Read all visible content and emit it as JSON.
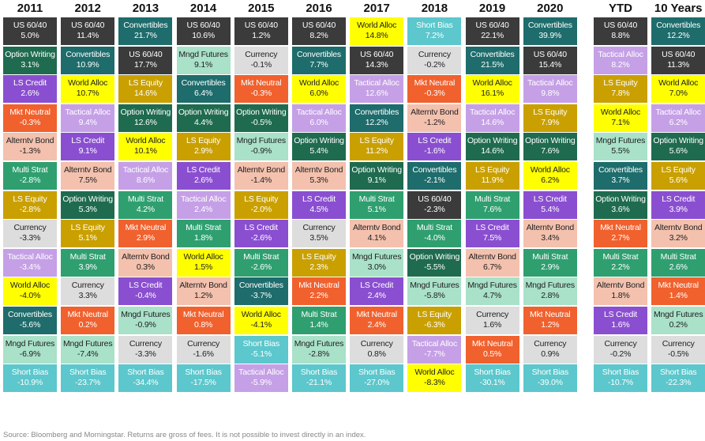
{
  "chart_data": {
    "type": "table",
    "title": "",
    "colors": {
      "US 60/40": {
        "bg": "#3b3b3b",
        "fg": "#ffffff"
      },
      "Option Writing": {
        "bg": "#1f6b4f",
        "fg": "#ffffff"
      },
      "LS Credit": {
        "bg": "#8a4fd0",
        "fg": "#ffffff"
      },
      "Mkt Neutral": {
        "bg": "#f0612e",
        "fg": "#ffffff"
      },
      "Alterntv Bond": {
        "bg": "#f3c1ae",
        "fg": "#222222"
      },
      "Multi Strat": {
        "bg": "#2f9f70",
        "fg": "#ffffff"
      },
      "LS Equity": {
        "bg": "#c9a000",
        "fg": "#ffffff"
      },
      "Currency": {
        "bg": "#dddddd",
        "fg": "#222222"
      },
      "Tactical Alloc": {
        "bg": "#c5a0e6",
        "fg": "#ffffff"
      },
      "World Alloc": {
        "bg": "#ffff00",
        "fg": "#222222"
      },
      "Convertibles": {
        "bg": "#1e6c6c",
        "fg": "#ffffff"
      },
      "Mngd Futures": {
        "bg": "#a9e1c9",
        "fg": "#222222"
      },
      "Short Bias": {
        "bg": "#5cc7cc",
        "fg": "#ffffff"
      }
    },
    "columns": [
      {
        "header": "2011",
        "cells": [
          [
            "US 60/40",
            "5.0%"
          ],
          [
            "Option Writing",
            "3.1%"
          ],
          [
            "LS Credit",
            "2.6%"
          ],
          [
            "Mkt Neutral",
            "-0.3%"
          ],
          [
            "Alterntv Bond",
            "-1.3%"
          ],
          [
            "Multi Strat",
            "-2.8%"
          ],
          [
            "LS Equity",
            "-2.8%"
          ],
          [
            "Currency",
            "-3.3%"
          ],
          [
            "Tactical Alloc",
            "-3.4%"
          ],
          [
            "World Alloc",
            "-4.0%"
          ],
          [
            "Convertibles",
            "-5.6%"
          ],
          [
            "Mngd Futures",
            "-6.9%"
          ],
          [
            "Short Bias",
            "-10.9%"
          ]
        ]
      },
      {
        "header": "2012",
        "cells": [
          [
            "US 60/40",
            "11.4%"
          ],
          [
            "Convertibles",
            "10.9%"
          ],
          [
            "World Alloc",
            "10.7%"
          ],
          [
            "Tactical Alloc",
            "9.4%"
          ],
          [
            "LS Credit",
            "9.1%"
          ],
          [
            "Alterntv Bond",
            "7.5%"
          ],
          [
            "Option Writing",
            "5.3%"
          ],
          [
            "LS Equity",
            "5.1%"
          ],
          [
            "Multi Strat",
            "3.9%"
          ],
          [
            "Currency",
            "3.3%"
          ],
          [
            "Mkt Neutral",
            "0.2%"
          ],
          [
            "Mngd Futures",
            "-7.4%"
          ],
          [
            "Short Bias",
            "-23.7%"
          ]
        ]
      },
      {
        "header": "2013",
        "cells": [
          [
            "Convertibles",
            "21.7%"
          ],
          [
            "US 60/40",
            "17.7%"
          ],
          [
            "LS Equity",
            "14.6%"
          ],
          [
            "Option Writing",
            "12.6%"
          ],
          [
            "World Alloc",
            "10.1%"
          ],
          [
            "Tactical Alloc",
            "8.6%"
          ],
          [
            "Multi Strat",
            "4.2%"
          ],
          [
            "Mkt Neutral",
            "2.9%"
          ],
          [
            "Alterntv Bond",
            "0.3%"
          ],
          [
            "LS Credit",
            "-0.4%"
          ],
          [
            "Mngd Futures",
            "-0.9%"
          ],
          [
            "Currency",
            "-3.3%"
          ],
          [
            "Short Bias",
            "-34.4%"
          ]
        ]
      },
      {
        "header": "2014",
        "cells": [
          [
            "US 60/40",
            "10.6%"
          ],
          [
            "Mngd Futures",
            "9.1%"
          ],
          [
            "Convertibles",
            "6.4%"
          ],
          [
            "Option Writing",
            "4.4%"
          ],
          [
            "LS Equity",
            "2.9%"
          ],
          [
            "LS Credit",
            "2.6%"
          ],
          [
            "Tactical Alloc",
            "2.4%"
          ],
          [
            "Multi Strat",
            "1.8%"
          ],
          [
            "World Alloc",
            "1.5%"
          ],
          [
            "Alterntv Bond",
            "1.2%"
          ],
          [
            "Mkt Neutral",
            "0.8%"
          ],
          [
            "Currency",
            "-1.6%"
          ],
          [
            "Short Bias",
            "-17.5%"
          ]
        ]
      },
      {
        "header": "2015",
        "cells": [
          [
            "US 60/40",
            "1.2%"
          ],
          [
            "Currency",
            "-0.1%"
          ],
          [
            "Mkt Neutral",
            "-0.3%"
          ],
          [
            "Option Writing",
            "-0.5%"
          ],
          [
            "Mngd Futures",
            "-0.9%"
          ],
          [
            "Alterntv Bond",
            "-1.4%"
          ],
          [
            "LS Equity",
            "-2.0%"
          ],
          [
            "LS Credit",
            "-2.6%"
          ],
          [
            "Multi Strat",
            "-2.6%"
          ],
          [
            "Convertibles",
            "-3.7%"
          ],
          [
            "World Alloc",
            "-4.1%"
          ],
          [
            "Short Bias",
            "-5.1%"
          ],
          [
            "Tactical Alloc",
            "-5.9%"
          ]
        ]
      },
      {
        "header": "2016",
        "cells": [
          [
            "US 60/40",
            "8.2%"
          ],
          [
            "Convertibles",
            "7.7%"
          ],
          [
            "World Alloc",
            "6.0%"
          ],
          [
            "Tactical Alloc",
            "6.0%"
          ],
          [
            "Option Writing",
            "5.4%"
          ],
          [
            "Alterntv Bond",
            "5.3%"
          ],
          [
            "LS Credit",
            "4.5%"
          ],
          [
            "Currency",
            "3.5%"
          ],
          [
            "LS Equity",
            "2.3%"
          ],
          [
            "Mkt Neutral",
            "2.2%"
          ],
          [
            "Multi Strat",
            "1.4%"
          ],
          [
            "Mngd Futures",
            "-2.8%"
          ],
          [
            "Short Bias",
            "-21.1%"
          ]
        ]
      },
      {
        "header": "2017",
        "cells": [
          [
            "World Alloc",
            "14.8%"
          ],
          [
            "US 60/40",
            "14.3%"
          ],
          [
            "Tactical Alloc",
            "12.6%"
          ],
          [
            "Convertibles",
            "12.2%"
          ],
          [
            "LS Equity",
            "11.2%"
          ],
          [
            "Option Writing",
            "9.1%"
          ],
          [
            "Multi Strat",
            "5.1%"
          ],
          [
            "Alterntv Bond",
            "4.1%"
          ],
          [
            "Mngd Futures",
            "3.0%"
          ],
          [
            "LS Credit",
            "2.4%"
          ],
          [
            "Mkt Neutral",
            "2.4%"
          ],
          [
            "Currency",
            "0.8%"
          ],
          [
            "Short Bias",
            "-27.0%"
          ]
        ]
      },
      {
        "header": "2018",
        "cells": [
          [
            "Short Bias",
            "7.2%"
          ],
          [
            "Currency",
            "-0.2%"
          ],
          [
            "Mkt Neutral",
            "-0.3%"
          ],
          [
            "Alterntv Bond",
            "-1.2%"
          ],
          [
            "LS Credit",
            "-1.6%"
          ],
          [
            "Convertibles",
            "-2.1%"
          ],
          [
            "US 60/40",
            "-2.3%"
          ],
          [
            "Multi Strat",
            "-4.0%"
          ],
          [
            "Option Writing",
            "-5.5%"
          ],
          [
            "Mngd Futures",
            "-5.8%"
          ],
          [
            "LS Equity",
            "-6.3%"
          ],
          [
            "Tactical Alloc",
            "-7.7%"
          ],
          [
            "World Alloc",
            "-8.3%"
          ]
        ]
      },
      {
        "header": "2019",
        "cells": [
          [
            "US 60/40",
            "22.1%"
          ],
          [
            "Convertibles",
            "21.5%"
          ],
          [
            "World Alloc",
            "16.1%"
          ],
          [
            "Tactical Alloc",
            "14.6%"
          ],
          [
            "Option Writing",
            "14.6%"
          ],
          [
            "LS Equity",
            "11.9%"
          ],
          [
            "Multi Strat",
            "7.6%"
          ],
          [
            "LS Credit",
            "7.5%"
          ],
          [
            "Alterntv Bond",
            "6.7%"
          ],
          [
            "Mngd Futures",
            "4.7%"
          ],
          [
            "Currency",
            "1.6%"
          ],
          [
            "Mkt Neutral",
            "0.5%"
          ],
          [
            "Short Bias",
            "-30.1%"
          ]
        ]
      },
      {
        "header": "2020",
        "cells": [
          [
            "Convertibles",
            "39.9%"
          ],
          [
            "US 60/40",
            "15.4%"
          ],
          [
            "Tactical Alloc",
            "9.8%"
          ],
          [
            "LS Equity",
            "7.9%"
          ],
          [
            "Option Writing",
            "7.6%"
          ],
          [
            "World Alloc",
            "6.2%"
          ],
          [
            "LS Credit",
            "5.4%"
          ],
          [
            "Alterntv Bond",
            "3.4%"
          ],
          [
            "Multi Strat",
            "2.9%"
          ],
          [
            "Mngd Futures",
            "2.8%"
          ],
          [
            "Mkt Neutral",
            "1.2%"
          ],
          [
            "Currency",
            "0.9%"
          ],
          [
            "Short Bias",
            "-39.0%"
          ]
        ]
      },
      {
        "header": "YTD",
        "cells": [
          [
            "US 60/40",
            "8.8%"
          ],
          [
            "Tactical Alloc",
            "8.2%"
          ],
          [
            "LS Equity",
            "7.8%"
          ],
          [
            "World Alloc",
            "7.1%"
          ],
          [
            "Mngd Futures",
            "5.5%"
          ],
          [
            "Convertibles",
            "3.7%"
          ],
          [
            "Option Writing",
            "3.6%"
          ],
          [
            "Mkt Neutral",
            "2.7%"
          ],
          [
            "Multi Strat",
            "2.2%"
          ],
          [
            "Alterntv Bond",
            "1.8%"
          ],
          [
            "LS Credit",
            "1.6%"
          ],
          [
            "Currency",
            "-0.2%"
          ],
          [
            "Short Bias",
            "-10.7%"
          ]
        ]
      },
      {
        "header": "10 Years",
        "cells": [
          [
            "Convertibles",
            "12.2%"
          ],
          [
            "US 60/40",
            "11.3%"
          ],
          [
            "World Alloc",
            "7.0%"
          ],
          [
            "Tactical Alloc",
            "6.2%"
          ],
          [
            "Option Writing",
            "5.6%"
          ],
          [
            "LS Equity",
            "5.6%"
          ],
          [
            "LS Credit",
            "3.9%"
          ],
          [
            "Alterntv Bond",
            "3.2%"
          ],
          [
            "Multi Strat",
            "2.6%"
          ],
          [
            "Mkt Neutral",
            "1.4%"
          ],
          [
            "Mngd Futures",
            "0.2%"
          ],
          [
            "Currency",
            "-0.5%"
          ],
          [
            "Short Bias",
            "-22.3%"
          ]
        ]
      }
    ]
  },
  "source": "Source: Bloomberg and Morningstar. Returns are gross of fees. It is not possible to invest directly in an index."
}
